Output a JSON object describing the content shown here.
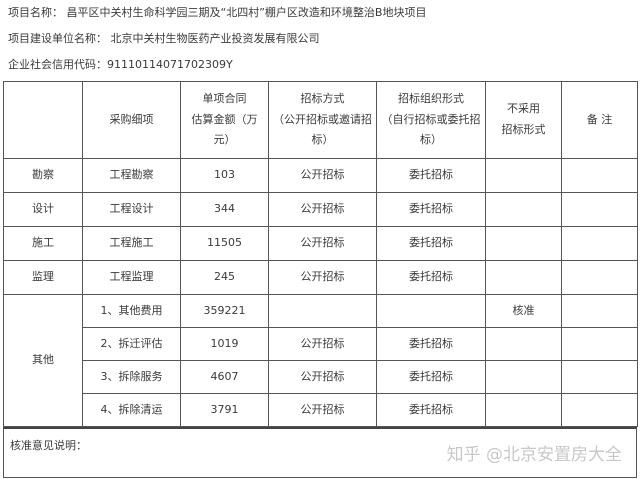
{
  "header": {
    "project_name": "项目名称：  昌平区中关村生命科学园三期及“北四村”棚户区改造和环境整治B地块项目",
    "builder": "项目建设单位名称：  北京中关村生物医药产业投资发展有限公司",
    "credit_code": "企业社会信用代码：91110114071702309Y"
  },
  "table": {
    "headers": [
      "",
      "采购细项",
      "单项合同估算金额（万元）",
      "招标方式（公开招标或邀请招标）",
      "招标组织形式（自行招标或委托招标）",
      "不采用招标形式",
      "备 注"
    ],
    "header_lines": {
      "c2": [
        "单项合同",
        "估算金额（万",
        "元）"
      ],
      "c3": [
        "招标方式",
        "（公开招标或邀请招",
        "标）"
      ],
      "c4": [
        "招标组织形式",
        "（自行招标或委托招",
        "标）"
      ],
      "c5": [
        "不采用",
        "招标形式"
      ]
    },
    "rows": [
      {
        "category": "勘察",
        "item": "工程勘察",
        "amount": "103",
        "method": "公开招标",
        "org": "委托招标",
        "no_bid": "",
        "remark": ""
      },
      {
        "category": "设计",
        "item": "工程设计",
        "amount": "344",
        "method": "公开招标",
        "org": "委托招标",
        "no_bid": "",
        "remark": ""
      },
      {
        "category": "施工",
        "item": "工程施工",
        "amount": "11505",
        "method": "公开招标",
        "org": "委托招标",
        "no_bid": "",
        "remark": ""
      },
      {
        "category": "监理",
        "item": "工程监理",
        "amount": "245",
        "method": "公开招标",
        "org": "委托招标",
        "no_bid": "",
        "remark": ""
      },
      {
        "category": "其他",
        "item": "1、其他费用",
        "amount": "359221",
        "method": "",
        "org": "",
        "no_bid": "核准",
        "remark": ""
      },
      {
        "item": "2、拆迁评估",
        "amount": "1019",
        "method": "公开招标",
        "org": "委托招标",
        "no_bid": "",
        "remark": ""
      },
      {
        "item": "3、拆除服务",
        "amount": "4607",
        "method": "公开招标",
        "org": "委托招标",
        "no_bid": "",
        "remark": ""
      },
      {
        "item": "4、拆除清运",
        "amount": "3791",
        "method": "公开招标",
        "org": "委托招标",
        "no_bid": "",
        "remark": ""
      }
    ]
  },
  "note_label": "核准意见说明：",
  "watermark": "知乎 @北京安置房大全"
}
